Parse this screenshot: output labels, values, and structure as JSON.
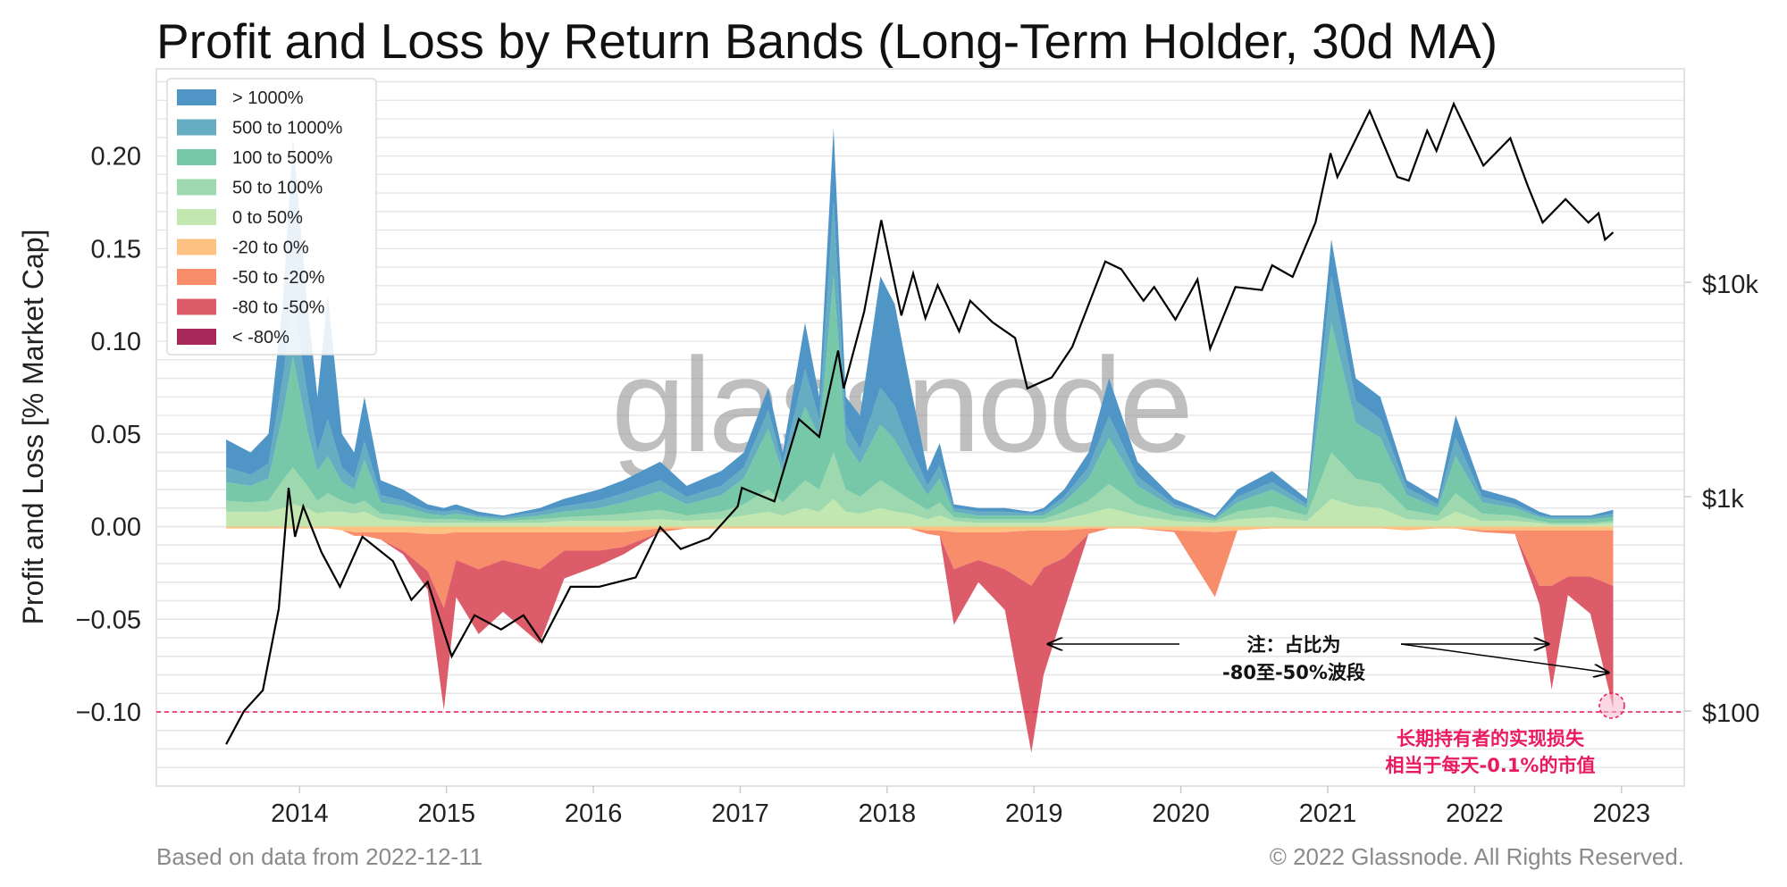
{
  "chart_data": {
    "type": "area",
    "title": "Profit and Loss by Return Bands (Long-Term Holder, 30d MA)",
    "ylabel": "Profit and Loss [% Market Cap]",
    "y2_ticks": [
      "$100",
      "$1k",
      "$10k"
    ],
    "y2_tick_values": [
      100,
      1000,
      10000
    ],
    "y2_scale": "log",
    "xlim": [
      "2013-01-10",
      "2023-06-05"
    ],
    "ylim": [
      -0.14,
      0.247
    ],
    "y_ticks": [
      -0.1,
      -0.05,
      0.0,
      0.05,
      0.1,
      0.15,
      0.2
    ],
    "y_tick_labels": [
      "−0.10",
      "−0.05",
      "0.00",
      "0.05",
      "0.10",
      "0.15",
      "0.20"
    ],
    "x_ticks": [
      "2014",
      "2015",
      "2016",
      "2017",
      "2018",
      "2019",
      "2020",
      "2021",
      "2022",
      "2023"
    ],
    "grid": true,
    "legend_position": "top-left",
    "series": [
      {
        "name": "> 1000%",
        "color": "#4f96c7",
        "sign": "pos"
      },
      {
        "name": "500 to 1000%",
        "color": "#66adc1",
        "sign": "pos"
      },
      {
        "name": "100 to 500%",
        "color": "#77c8a9",
        "sign": "pos"
      },
      {
        "name": "50 to 100%",
        "color": "#9dd8ae",
        "sign": "pos"
      },
      {
        "name": "0 to 50%",
        "color": "#c3e7b1",
        "sign": "pos"
      },
      {
        "name": "-20 to 0%",
        "color": "#fdc182",
        "sign": "neg"
      },
      {
        "name": "-50 to -20%",
        "color": "#f88d6c",
        "sign": "neg"
      },
      {
        "name": "-80 to -50%",
        "color": "#dc5d69",
        "sign": "neg"
      },
      {
        "name": "< -80%",
        "color": "#a8285c",
        "sign": "neg"
      }
    ],
    "columns": [
      "date",
      "> 1000%",
      "500 to 1000%",
      "100 to 500%",
      "50 to 100%",
      "0 to 50%",
      "-20 to 0%",
      "-50 to -20%",
      "-80 to -50%",
      "< -80%"
    ],
    "rows": [
      [
        "2013-07-01",
        0.015,
        0.008,
        0.01,
        0.006,
        0.008,
        -0.001,
        0,
        0,
        0
      ],
      [
        "2013-09-01",
        0.012,
        0.006,
        0.009,
        0.005,
        0.008,
        -0.001,
        0,
        0,
        0
      ],
      [
        "2013-10-15",
        0.016,
        0.008,
        0.012,
        0.006,
        0.008,
        -0.001,
        0,
        0,
        0
      ],
      [
        "2013-11-20",
        0.04,
        0.02,
        0.035,
        0.015,
        0.01,
        -0.001,
        0,
        0,
        0
      ],
      [
        "2013-12-15",
        0.088,
        0.03,
        0.06,
        0.02,
        0.012,
        -0.001,
        0,
        0,
        0
      ],
      [
        "2014-01-20",
        0.048,
        0.02,
        0.03,
        0.012,
        0.01,
        -0.001,
        0,
        0,
        0
      ],
      [
        "2014-02-15",
        0.03,
        0.01,
        0.016,
        0.007,
        0.007,
        -0.001,
        0,
        0,
        0
      ],
      [
        "2014-03-10",
        0.067,
        0.02,
        0.02,
        0.01,
        0.008,
        -0.001,
        0,
        0,
        0
      ],
      [
        "2014-04-15",
        0.018,
        0.008,
        0.01,
        0.006,
        0.008,
        -0.002,
        0,
        0,
        0
      ],
      [
        "2014-05-15",
        0.014,
        0.006,
        0.008,
        0.005,
        0.007,
        -0.003,
        -0.002,
        0,
        0
      ],
      [
        "2014-06-10",
        0.024,
        0.01,
        0.022,
        0.006,
        0.008,
        -0.003,
        -0.002,
        0,
        0
      ],
      [
        "2014-07-20",
        0.008,
        0.004,
        0.006,
        0.003,
        0.004,
        -0.003,
        -0.004,
        0,
        0
      ],
      [
        "2014-09-15",
        0.006,
        0.003,
        0.005,
        0.003,
        0.003,
        -0.003,
        -0.01,
        -0.002,
        0
      ],
      [
        "2014-11-15",
        0.003,
        0.002,
        0.003,
        0.002,
        0.002,
        -0.004,
        -0.02,
        -0.01,
        0
      ],
      [
        "2014-12-25",
        0.002,
        0.002,
        0.002,
        0.002,
        0.002,
        -0.004,
        -0.04,
        -0.055,
        0
      ],
      [
        "2015-01-25",
        0.003,
        0.002,
        0.003,
        0.002,
        0.002,
        -0.003,
        -0.015,
        -0.02,
        0
      ],
      [
        "2015-03-20",
        0.002,
        0.001,
        0.002,
        0.001,
        0.002,
        -0.003,
        -0.02,
        -0.035,
        0
      ],
      [
        "2015-05-20",
        0.001,
        0.001,
        0.001,
        0.001,
        0.002,
        -0.003,
        -0.015,
        -0.028,
        0
      ],
      [
        "2015-08-20",
        0.002,
        0.002,
        0.002,
        0.002,
        0.002,
        -0.003,
        -0.02,
        -0.04,
        0
      ],
      [
        "2015-10-20",
        0.004,
        0.003,
        0.003,
        0.002,
        0.003,
        -0.003,
        -0.01,
        -0.015,
        0
      ],
      [
        "2016-01-15",
        0.006,
        0.004,
        0.004,
        0.003,
        0.003,
        -0.003,
        -0.01,
        -0.008,
        0
      ],
      [
        "2016-03-15",
        0.007,
        0.005,
        0.006,
        0.004,
        0.003,
        -0.003,
        -0.008,
        -0.004,
        0
      ],
      [
        "2016-06-15",
        0.01,
        0.006,
        0.01,
        0.005,
        0.004,
        -0.001,
        -0.002,
        0,
        0
      ],
      [
        "2016-08-20",
        0.006,
        0.004,
        0.006,
        0.003,
        0.003,
        -0.001,
        0,
        0,
        0
      ],
      [
        "2016-11-15",
        0.008,
        0.005,
        0.009,
        0.004,
        0.004,
        -0.001,
        0,
        0,
        0
      ],
      [
        "2017-01-10",
        0.008,
        0.006,
        0.014,
        0.006,
        0.006,
        -0.001,
        0,
        0,
        0
      ],
      [
        "2017-03-10",
        0.012,
        0.01,
        0.033,
        0.012,
        0.008,
        -0.001,
        0,
        0,
        0
      ],
      [
        "2017-04-15",
        0.006,
        0.005,
        0.016,
        0.007,
        0.006,
        -0.001,
        0,
        0,
        0
      ],
      [
        "2017-06-10",
        0.025,
        0.02,
        0.04,
        0.015,
        0.01,
        -0.001,
        0,
        0,
        0
      ],
      [
        "2017-07-15",
        0.012,
        0.01,
        0.028,
        0.012,
        0.008,
        -0.001,
        0,
        0,
        0
      ],
      [
        "2017-08-20",
        0.04,
        0.04,
        0.095,
        0.025,
        0.015,
        -0.001,
        0,
        0,
        0
      ],
      [
        "2017-09-20",
        0.015,
        0.01,
        0.025,
        0.012,
        0.008,
        -0.001,
        0,
        0,
        0
      ],
      [
        "2017-10-25",
        0.018,
        0.008,
        0.018,
        0.009,
        0.007,
        -0.001,
        0,
        0,
        0
      ],
      [
        "2017-12-15",
        0.06,
        0.02,
        0.03,
        0.015,
        0.01,
        -0.001,
        0,
        0,
        0
      ],
      [
        "2018-01-20",
        0.055,
        0.018,
        0.027,
        0.012,
        0.008,
        -0.001,
        0,
        0,
        0
      ],
      [
        "2018-02-25",
        0.035,
        0.012,
        0.018,
        0.008,
        0.007,
        -0.001,
        0,
        0,
        0
      ],
      [
        "2018-04-10",
        0.008,
        0.005,
        0.008,
        0.005,
        0.004,
        -0.002,
        -0.002,
        0,
        0
      ],
      [
        "2018-05-10",
        0.012,
        0.007,
        0.013,
        0.007,
        0.006,
        -0.002,
        -0.003,
        0,
        0
      ],
      [
        "2018-06-15",
        0.002,
        0.002,
        0.003,
        0.002,
        0.003,
        -0.003,
        -0.02,
        -0.03,
        0
      ],
      [
        "2018-08-15",
        0.002,
        0.002,
        0.002,
        0.002,
        0.002,
        -0.003,
        -0.015,
        -0.012,
        0
      ],
      [
        "2018-10-20",
        0.002,
        0.002,
        0.002,
        0.002,
        0.002,
        -0.003,
        -0.02,
        -0.022,
        0
      ],
      [
        "2018-12-25",
        0.001,
        0.001,
        0.002,
        0.002,
        0.002,
        -0.002,
        -0.03,
        -0.09,
        0
      ],
      [
        "2019-01-25",
        0.002,
        0.002,
        0.002,
        0.002,
        0.002,
        -0.002,
        -0.02,
        -0.058,
        0
      ],
      [
        "2019-03-15",
        0.004,
        0.003,
        0.005,
        0.004,
        0.004,
        -0.002,
        -0.015,
        -0.028,
        0
      ],
      [
        "2019-05-15",
        0.008,
        0.006,
        0.012,
        0.007,
        0.007,
        -0.001,
        -0.003,
        0,
        0
      ],
      [
        "2019-07-05",
        0.02,
        0.012,
        0.025,
        0.013,
        0.01,
        -0.001,
        0,
        0,
        0
      ],
      [
        "2019-09-15",
        0.008,
        0.005,
        0.01,
        0.006,
        0.006,
        -0.001,
        0,
        0,
        0
      ],
      [
        "2019-12-15",
        0.003,
        0.002,
        0.004,
        0.003,
        0.003,
        -0.002,
        -0.001,
        0,
        0
      ],
      [
        "2020-03-25",
        0.001,
        0.001,
        0.001,
        0.001,
        0.002,
        -0.003,
        -0.035,
        0,
        0
      ],
      [
        "2020-05-20",
        0.004,
        0.003,
        0.005,
        0.004,
        0.004,
        -0.002,
        0,
        0,
        0
      ],
      [
        "2020-08-15",
        0.006,
        0.004,
        0.009,
        0.006,
        0.005,
        -0.001,
        0,
        0,
        0
      ],
      [
        "2020-11-10",
        0.003,
        0.002,
        0.004,
        0.003,
        0.003,
        -0.001,
        0,
        0,
        0
      ],
      [
        "2021-01-10",
        0.02,
        0.025,
        0.07,
        0.025,
        0.015,
        -0.001,
        0,
        0,
        0
      ],
      [
        "2021-03-10",
        0.012,
        0.012,
        0.03,
        0.015,
        0.011,
        -0.001,
        0,
        0,
        0
      ],
      [
        "2021-05-10",
        0.012,
        0.01,
        0.025,
        0.013,
        0.01,
        -0.001,
        0,
        0,
        0
      ],
      [
        "2021-07-15",
        0.004,
        0.004,
        0.008,
        0.005,
        0.004,
        -0.002,
        0,
        0,
        0
      ],
      [
        "2021-10-01",
        0.003,
        0.002,
        0.004,
        0.003,
        0.003,
        -0.001,
        0,
        0,
        0
      ],
      [
        "2021-11-15",
        0.012,
        0.01,
        0.02,
        0.01,
        0.008,
        -0.001,
        0,
        0,
        0
      ],
      [
        "2022-01-20",
        0.004,
        0.003,
        0.006,
        0.004,
        0.003,
        -0.002,
        -0.001,
        0,
        0
      ],
      [
        "2022-04-10",
        0.003,
        0.002,
        0.004,
        0.003,
        0.003,
        -0.002,
        -0.002,
        0,
        0
      ],
      [
        "2022-06-10",
        0.002,
        0.001,
        0.002,
        0.001,
        0.002,
        -0.002,
        -0.03,
        -0.01,
        0
      ],
      [
        "2022-07-10",
        0.001,
        0.001,
        0.002,
        0.001,
        0.001,
        -0.002,
        -0.03,
        -0.056,
        0
      ],
      [
        "2022-08-20",
        0.001,
        0.001,
        0.002,
        0.001,
        0.001,
        -0.002,
        -0.025,
        -0.01,
        0
      ],
      [
        "2022-10-15",
        0.001,
        0.001,
        0.002,
        0.001,
        0.001,
        -0.002,
        -0.025,
        -0.02,
        0
      ],
      [
        "2022-12-11",
        0.002,
        0.002,
        0.002,
        0.001,
        0.002,
        -0.002,
        -0.03,
        -0.066,
        0
      ]
    ],
    "price": [
      [
        "2013-07-01",
        70
      ],
      [
        "2013-08-15",
        100
      ],
      [
        "2013-10-01",
        125
      ],
      [
        "2013-11-10",
        300
      ],
      [
        "2013-12-04",
        1100
      ],
      [
        "2013-12-20",
        650
      ],
      [
        "2014-01-10",
        900
      ],
      [
        "2014-02-25",
        550
      ],
      [
        "2014-04-10",
        380
      ],
      [
        "2014-06-05",
        650
      ],
      [
        "2014-08-20",
        500
      ],
      [
        "2014-10-05",
        330
      ],
      [
        "2014-11-15",
        400
      ],
      [
        "2015-01-14",
        180
      ],
      [
        "2015-03-10",
        280
      ],
      [
        "2015-05-15",
        240
      ],
      [
        "2015-07-10",
        280
      ],
      [
        "2015-08-25",
        210
      ],
      [
        "2015-11-05",
        380
      ],
      [
        "2016-01-15",
        380
      ],
      [
        "2016-04-15",
        420
      ],
      [
        "2016-06-15",
        720
      ],
      [
        "2016-08-05",
        570
      ],
      [
        "2016-10-15",
        640
      ],
      [
        "2016-12-25",
        900
      ],
      [
        "2017-01-05",
        1100
      ],
      [
        "2017-03-25",
        950
      ],
      [
        "2017-05-25",
        2300
      ],
      [
        "2017-07-15",
        1900
      ],
      [
        "2017-09-01",
        4800
      ],
      [
        "2017-09-15",
        3200
      ],
      [
        "2017-11-05",
        7300
      ],
      [
        "2017-12-17",
        19500
      ],
      [
        "2018-02-06",
        7000
      ],
      [
        "2018-03-05",
        11000
      ],
      [
        "2018-04-05",
        6800
      ],
      [
        "2018-05-05",
        9700
      ],
      [
        "2018-06-28",
        5900
      ],
      [
        "2018-07-25",
        8200
      ],
      [
        "2018-09-20",
        6500
      ],
      [
        "2018-11-15",
        5500
      ],
      [
        "2018-12-15",
        3200
      ],
      [
        "2019-02-15",
        3600
      ],
      [
        "2019-04-05",
        5000
      ],
      [
        "2019-06-26",
        12500
      ],
      [
        "2019-08-05",
        11500
      ],
      [
        "2019-09-30",
        8200
      ],
      [
        "2019-10-26",
        9500
      ],
      [
        "2019-12-18",
        6700
      ],
      [
        "2020-02-12",
        10300
      ],
      [
        "2020-03-13",
        4900
      ],
      [
        "2020-05-15",
        9500
      ],
      [
        "2020-07-20",
        9200
      ],
      [
        "2020-08-15",
        12000
      ],
      [
        "2020-10-05",
        10600
      ],
      [
        "2020-12-01",
        19000
      ],
      [
        "2021-01-08",
        40000
      ],
      [
        "2021-01-25",
        31000
      ],
      [
        "2021-04-14",
        63000
      ],
      [
        "2021-06-22",
        31000
      ],
      [
        "2021-07-20",
        29800
      ],
      [
        "2021-09-05",
        51000
      ],
      [
        "2021-09-28",
        41000
      ],
      [
        "2021-11-10",
        68000
      ],
      [
        "2022-01-23",
        35000
      ],
      [
        "2022-03-29",
        47000
      ],
      [
        "2022-05-12",
        28000
      ],
      [
        "2022-06-18",
        19000
      ],
      [
        "2022-08-14",
        24400
      ],
      [
        "2022-10-10",
        19000
      ],
      [
        "2022-11-05",
        21000
      ],
      [
        "2022-11-21",
        15800
      ],
      [
        "2022-12-11",
        17100
      ]
    ],
    "reference_line": {
      "y": -0.1,
      "color": "#e8175d",
      "style": "dashed"
    },
    "annotations": {
      "note_line1": "注：占比为",
      "note_line2": "-80至-50%波段",
      "note_arrow_targets": [
        "2019-01-25",
        "2022-07-10",
        "2022-12-05"
      ],
      "highlight_line1": "长期持有者的实现损失",
      "highlight_line2": "相当于每天-0.1%的市值",
      "highlight_color": "#ea1a62"
    }
  },
  "watermark": "glassnode",
  "footer": {
    "left": "Based on data from 2022-12-11",
    "right": "© 2022 Glassnode. All Rights Reserved."
  }
}
